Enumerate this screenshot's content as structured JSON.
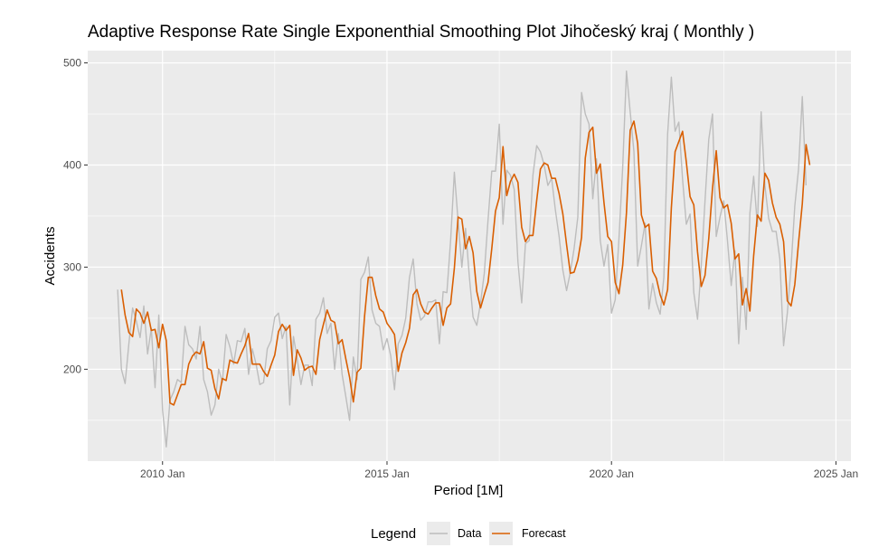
{
  "chart_data": {
    "type": "line",
    "title": "Adaptive Response Rate Single Exponenthial Smoothing Plot  Jihočeský kraj ( Monthly )",
    "xlabel": "Period [1M]",
    "ylabel": "Accidents",
    "x_ticks": [
      "2010 Jan",
      "2015 Jan",
      "2020 Jan",
      "2025 Jan"
    ],
    "y_ticks": [
      200,
      300,
      400,
      500
    ],
    "xlim": [
      "2008-05",
      "2025-05"
    ],
    "ylim": [
      110,
      512
    ],
    "grid": true,
    "legend": {
      "title": "Legend",
      "position": "bottom"
    },
    "colors": {
      "panel": "#ebebeb",
      "grid": "#ffffff",
      "data": "#bdbdbd",
      "forecast": "#d95f02"
    },
    "series": [
      {
        "name": "Data",
        "start": "2009-01",
        "frequency": "monthly",
        "values": [
          278,
          200,
          186,
          225,
          260,
          247,
          231,
          262,
          215,
          240,
          182,
          253,
          160,
          124,
          170,
          178,
          190,
          187,
          242,
          224,
          220,
          210,
          242,
          190,
          178,
          155,
          165,
          200,
          187,
          234,
          222,
          205,
          228,
          227,
          240,
          195,
          220,
          205,
          185,
          187,
          220,
          228,
          251,
          255,
          230,
          242,
          165,
          232,
          210,
          185,
          204,
          204,
          184,
          249,
          255,
          270,
          235,
          245,
          200,
          235,
          195,
          173,
          150,
          212,
          190,
          288,
          295,
          310,
          258,
          245,
          242,
          219,
          230,
          213,
          180,
          225,
          233,
          250,
          290,
          308,
          264,
          248,
          252,
          266,
          266,
          268,
          225,
          276,
          275,
          326,
          393,
          345,
          300,
          338,
          291,
          251,
          243,
          265,
          294,
          346,
          394,
          394,
          440,
          342,
          395,
          390,
          376,
          305,
          265,
          323,
          326,
          390,
          419,
          413,
          400,
          380,
          387,
          356,
          330,
          297,
          277,
          295,
          318,
          349,
          471,
          450,
          440,
          367,
          406,
          326,
          301,
          322,
          255,
          268,
          328,
          398,
          492,
          452,
          413,
          301,
          321,
          343,
          259,
          284,
          265,
          254,
          290,
          430,
          486,
          433,
          442,
          386,
          342,
          352,
          275,
          249,
          302,
          365,
          425,
          450,
          330,
          349,
          365,
          326,
          282,
          316,
          225,
          290,
          239,
          353,
          389,
          340,
          452,
          380,
          348,
          335,
          335,
          308,
          223,
          255,
          300,
          360,
          396,
          467,
          380
        ]
      },
      {
        "name": "Forecast",
        "start": "2009-02",
        "frequency": "monthly",
        "values": [
          278,
          253,
          236,
          232,
          259,
          255,
          245,
          256,
          238,
          239,
          221,
          244,
          228,
          167,
          165,
          175,
          185,
          185,
          205,
          213,
          217,
          215,
          227,
          201,
          199,
          181,
          171,
          191,
          189,
          209,
          207,
          206,
          215,
          223,
          235,
          205,
          205,
          205,
          198,
          193,
          204,
          214,
          237,
          244,
          238,
          243,
          194,
          219,
          211,
          199,
          202,
          203,
          195,
          229,
          244,
          258,
          248,
          246,
          225,
          229,
          210,
          192,
          168,
          197,
          201,
          252,
          290,
          290,
          272,
          259,
          256,
          245,
          240,
          234,
          198,
          216,
          226,
          240,
          273,
          278,
          264,
          256,
          254,
          260,
          265,
          265,
          243,
          260,
          264,
          299,
          349,
          347,
          318,
          330,
          314,
          276,
          260,
          273,
          285,
          318,
          355,
          368,
          418,
          370,
          384,
          391,
          383,
          339,
          325,
          331,
          331,
          365,
          396,
          402,
          400,
          387,
          387,
          372,
          352,
          322,
          294,
          295,
          307,
          329,
          407,
          432,
          437,
          392,
          401,
          363,
          330,
          325,
          285,
          274,
          302,
          353,
          434,
          443,
          421,
          351,
          339,
          342,
          296,
          289,
          273,
          263,
          278,
          358,
          413,
          423,
          433,
          403,
          369,
          361,
          315,
          281,
          292,
          328,
          377,
          414,
          368,
          358,
          361,
          343,
          308,
          313,
          263,
          279,
          257,
          311,
          351,
          345,
          392,
          385,
          363,
          349,
          342,
          325,
          267,
          262,
          283,
          324,
          362,
          420,
          400
        ]
      }
    ]
  }
}
